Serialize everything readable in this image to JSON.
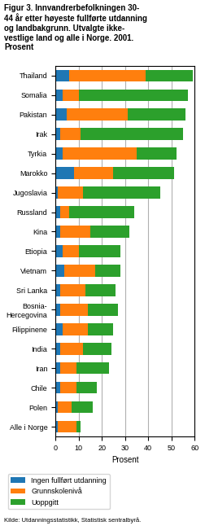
{
  "chart_data": {
    "type": "bar",
    "orientation": "horizontal",
    "stacked": true,
    "title": "Figur 3. Innvandrerbefolkningen 30-\n44 år etter høyeste fullførte utdanning\nog landbakgrunn. Utvalgte ikke-\nvestlige land og alle i Norge. 2001.\nProsent",
    "categories": [
      "Thailand",
      "Somalia",
      "Pakistan",
      "Irak",
      "Tyrkia",
      "Marokko",
      "Jugoslavia",
      "Russland",
      "Kina",
      "Etiopia",
      "Vietnam",
      "Sri Lanka",
      "Bosnia-\nHercegovina",
      "Filippinene",
      "India",
      "Iran",
      "Chile",
      "Polen",
      "Alle i Norge"
    ],
    "series": [
      {
        "name": "Ingen fullført utdanning",
        "values": [
          6,
          3,
          5,
          2,
          3,
          8,
          1,
          2,
          2,
          3,
          4,
          2,
          2,
          3,
          2,
          2,
          2,
          1,
          1
        ]
      },
      {
        "name": "Grunnskolenivå",
        "values": [
          33,
          7,
          26,
          9,
          32,
          17,
          11,
          4,
          13,
          7,
          13,
          11,
          12,
          11,
          10,
          7,
          7,
          6,
          8
        ]
      },
      {
        "name": "Uoppgitt",
        "values": [
          20,
          47,
          25,
          44,
          17,
          26,
          33,
          28,
          17,
          18,
          11,
          13,
          13,
          11,
          12,
          14,
          9,
          9,
          2
        ]
      }
    ],
    "xlabel": "Prosent",
    "xlim": [
      0,
      60
    ],
    "xticks": [
      0,
      10,
      20,
      30,
      40,
      50,
      60
    ],
    "grid": true,
    "legend": "lower left",
    "source": "Kilde: Utdanningsstatistikk, Statistisk sentralbyrå."
  }
}
